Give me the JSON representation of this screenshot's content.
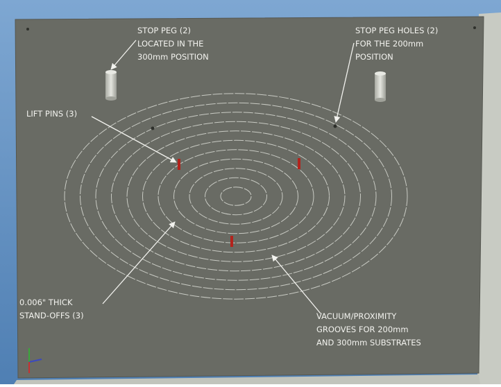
{
  "annotations": [
    {
      "lines": [
        "STOP PEG (2)",
        "LOCATED IN THE",
        "300mm POSITION"
      ]
    },
    {
      "lines": [
        "STOP PEG HOLES  (2)",
        "FOR THE 200mm",
        "POSITION"
      ]
    },
    {
      "lines": [
        "LIFT PINS (3)"
      ]
    },
    {
      "lines": [
        "0.006\" THICK",
        "STAND-OFFS (3)"
      ]
    },
    {
      "lines": [
        "VACUUM/PROXIMITY",
        "GROOVES FOR 200mm",
        "AND 300mm SUBSTRATES"
      ]
    }
  ]
}
